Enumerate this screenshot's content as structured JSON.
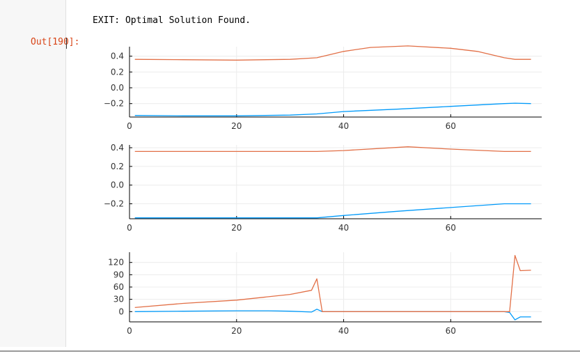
{
  "cell": {
    "stdout": "EXIT: Optimal Solution Found.",
    "out_prompt": "Out[190]:"
  },
  "colors": {
    "series1": "#009AFA",
    "series2": "#E26F46",
    "grid": "#ececec",
    "axis": "#000000"
  },
  "chart_data": [
    {
      "type": "line",
      "xlim": [
        0,
        77
      ],
      "ylim": [
        -0.37,
        0.52
      ],
      "xticks": [
        0,
        20,
        40,
        60
      ],
      "yticks": [
        -0.2,
        0.0,
        0.2,
        0.4
      ],
      "ytick_labels": [
        "−0.2",
        "0.0",
        "0.2",
        "0.4"
      ],
      "grid": true,
      "legend": "none",
      "series": [
        {
          "x": [
            1,
            10,
            20,
            30,
            35,
            40,
            50,
            60,
            70,
            72,
            75
          ],
          "y": [
            -0.35,
            -0.355,
            -0.355,
            -0.345,
            -0.33,
            -0.3,
            -0.27,
            -0.235,
            -0.2,
            -0.195,
            -0.2
          ]
        },
        {
          "x": [
            1,
            10,
            20,
            30,
            35,
            40,
            45,
            52,
            60,
            65,
            70,
            72,
            75
          ],
          "y": [
            0.36,
            0.355,
            0.35,
            0.36,
            0.38,
            0.46,
            0.51,
            0.53,
            0.5,
            0.46,
            0.38,
            0.36,
            0.36
          ]
        }
      ]
    },
    {
      "type": "line",
      "xlim": [
        0,
        77
      ],
      "ylim": [
        -0.36,
        0.43
      ],
      "xticks": [
        0,
        20,
        40,
        60
      ],
      "yticks": [
        -0.2,
        0.0,
        0.2,
        0.4
      ],
      "ytick_labels": [
        "−0.2",
        "0.0",
        "0.2",
        "0.4"
      ],
      "grid": true,
      "legend": "none",
      "series": [
        {
          "x": [
            1,
            35,
            40,
            50,
            60,
            70,
            75
          ],
          "y": [
            -0.35,
            -0.35,
            -0.325,
            -0.28,
            -0.24,
            -0.2,
            -0.2
          ]
        },
        {
          "x": [
            1,
            35,
            40,
            52,
            60,
            70,
            75
          ],
          "y": [
            0.36,
            0.36,
            0.37,
            0.41,
            0.385,
            0.36,
            0.36
          ]
        }
      ]
    },
    {
      "type": "line",
      "xlim": [
        0,
        77
      ],
      "ylim": [
        -25,
        145
      ],
      "xticks": [
        0,
        20,
        40,
        60
      ],
      "yticks": [
        0,
        30,
        60,
        90,
        120
      ],
      "ytick_labels": [
        "0",
        "30",
        "60",
        "90",
        "120"
      ],
      "grid": true,
      "legend": "none",
      "series": [
        {
          "x": [
            1,
            10,
            20,
            26,
            30,
            34,
            35,
            36,
            70,
            71,
            72,
            73,
            75
          ],
          "y": [
            0,
            1,
            2,
            2,
            1,
            -1,
            6,
            0,
            0,
            -2,
            -20,
            -13,
            -13
          ]
        },
        {
          "x": [
            1,
            10,
            20,
            30,
            34,
            35,
            36,
            70,
            71,
            72,
            73,
            75
          ],
          "y": [
            10,
            20,
            28,
            42,
            52,
            80,
            0,
            0,
            0,
            137,
            100,
            101
          ]
        }
      ]
    }
  ]
}
